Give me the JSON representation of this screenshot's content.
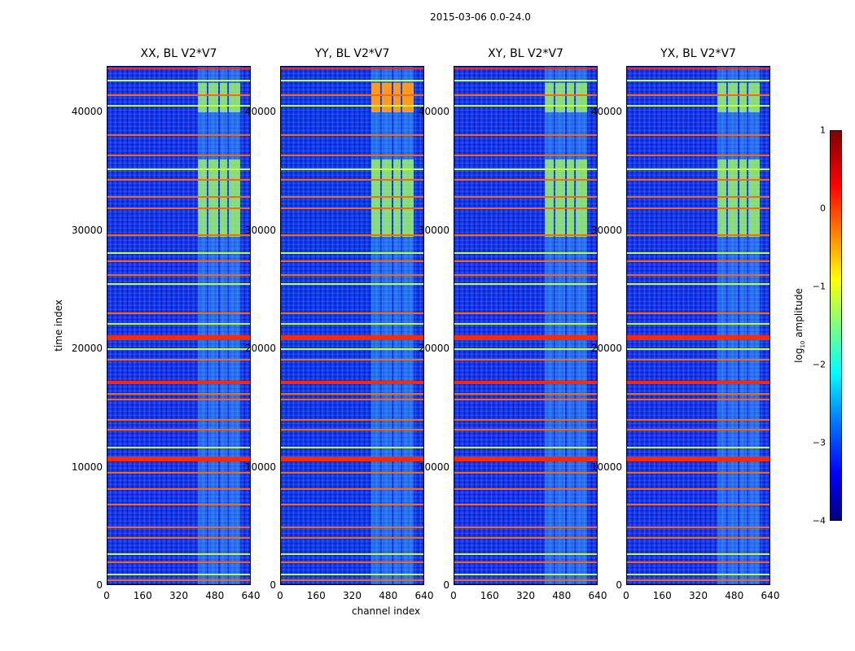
{
  "chart_data": {
    "type": "heatmap",
    "title": "2015-03-06 0.0-24.0",
    "xlabel": "channel index",
    "ylabel": "time index",
    "xlim": [
      0,
      640
    ],
    "ylim": [
      0,
      43850
    ],
    "xticks": [
      "0",
      "160",
      "320",
      "480",
      "640"
    ],
    "xtick_values": [
      0,
      160,
      320,
      480,
      640
    ],
    "yticks": [
      "0",
      "10000",
      "20000",
      "30000",
      "40000"
    ],
    "ytick_values": [
      0,
      10000,
      20000,
      30000,
      40000
    ],
    "panels": [
      {
        "title": "XX, BL V2*V7",
        "rfi_high": false
      },
      {
        "title": "YY, BL V2*V7",
        "rfi_high": true
      },
      {
        "title": "XY, BL V2*V7",
        "rfi_high": false
      },
      {
        "title": "YX, BL V2*V7",
        "rfi_high": false
      }
    ],
    "flagged_bands": [
      {
        "t": 43711,
        "w": 120,
        "level": 0.2
      },
      {
        "t": 42681,
        "w": 100,
        "level": -1
      },
      {
        "t": 41444,
        "w": 120,
        "level": 0
      },
      {
        "t": 40550,
        "w": 100,
        "level": -1
      },
      {
        "t": 38076,
        "w": 120,
        "level": 0
      },
      {
        "t": 36358,
        "w": 150,
        "level": 0
      },
      {
        "t": 35190,
        "w": 200,
        "level": -1
      },
      {
        "t": 34296,
        "w": 100,
        "level": 0
      },
      {
        "t": 32853,
        "w": 120,
        "level": 0
      },
      {
        "t": 31891,
        "w": 120,
        "level": 0
      },
      {
        "t": 29623,
        "w": 150,
        "level": 0
      },
      {
        "t": 28111,
        "w": 100,
        "level": -1
      },
      {
        "t": 27424,
        "w": 100,
        "level": 0
      },
      {
        "t": 26255,
        "w": 120,
        "level": 0
      },
      {
        "t": 25499,
        "w": 100,
        "level": -1
      },
      {
        "t": 23025,
        "w": 120,
        "level": 0
      },
      {
        "t": 22131,
        "w": 100,
        "level": -1
      },
      {
        "t": 20963,
        "w": 400,
        "level": 0.2
      },
      {
        "t": 20001,
        "w": 100,
        "level": -1
      },
      {
        "t": 19107,
        "w": 150,
        "level": 0
      },
      {
        "t": 17183,
        "w": 300,
        "level": 0.2
      },
      {
        "t": 16220,
        "w": 200,
        "level": 0
      },
      {
        "t": 15739,
        "w": 150,
        "level": 0
      },
      {
        "t": 14021,
        "w": 150,
        "level": 0
      },
      {
        "t": 13196,
        "w": 120,
        "level": 0
      },
      {
        "t": 11684,
        "w": 100,
        "level": -1
      },
      {
        "t": 10722,
        "w": 350,
        "level": 0.2
      },
      {
        "t": 9553,
        "w": 150,
        "level": 0
      },
      {
        "t": 8179,
        "w": 120,
        "level": 0
      },
      {
        "t": 6873,
        "w": 120,
        "level": 0
      },
      {
        "t": 4948,
        "w": 120,
        "level": 0
      },
      {
        "t": 4055,
        "w": 120,
        "level": 0
      },
      {
        "t": 2680,
        "w": 150,
        "level": -1
      },
      {
        "t": 1993,
        "w": 100,
        "level": 0
      },
      {
        "t": 962,
        "w": 100,
        "level": -1
      },
      {
        "t": 481,
        "w": 100,
        "level": 0
      }
    ],
    "rfi_channels": [
      [
        400,
        440
      ],
      [
        450,
        490
      ],
      [
        500,
        530
      ],
      [
        540,
        590
      ]
    ],
    "rfi_time_blocks": [
      [
        29500,
        36000
      ],
      [
        40000,
        42500
      ]
    ],
    "colorbar": {
      "label": "log10 amplitude",
      "label_base": "log",
      "label_sub": "10",
      "label_rest": " amplitude",
      "range": [
        -4,
        1
      ],
      "ticks": [
        "1",
        "0",
        "−1",
        "−2",
        "−3",
        "−4"
      ],
      "tick_values": [
        1,
        0,
        -1,
        -2,
        -3,
        -4
      ]
    }
  }
}
